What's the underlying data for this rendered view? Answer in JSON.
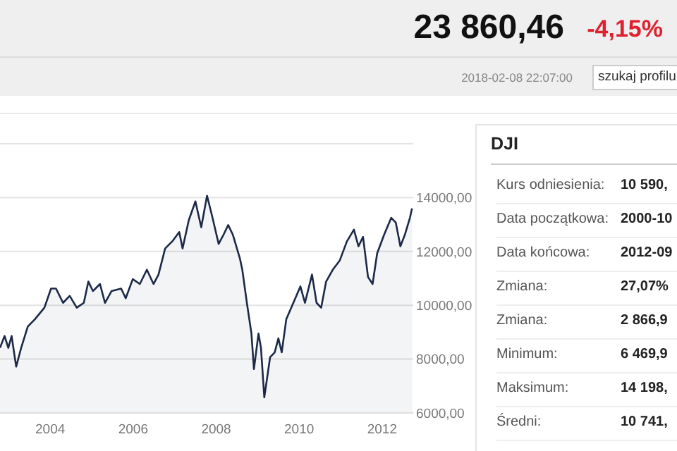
{
  "chart_data": [
    {
      "type": "other",
      "annotations": [
        "23 860,46",
        "-4,15%",
        "2018-02-08 22:07:00",
        "szukaj profilu"
      ]
    },
    {
      "type": "area",
      "xlim": [
        2002.79,
        2012.75
      ],
      "ylim": [
        6000,
        16000
      ],
      "xticks": [
        2004,
        2006,
        2008,
        2010,
        2012
      ],
      "yticks": [
        {
          "value": 6000,
          "label": "6000,00"
        },
        {
          "value": 8000,
          "label": "8000,00"
        },
        {
          "value": 10000,
          "label": "10000,00"
        },
        {
          "value": 12000,
          "label": "12000,00"
        },
        {
          "value": 14000,
          "label": "14000,00"
        }
      ],
      "grid": "y",
      "series": [
        {
          "color": "#1c2a48",
          "x": [
            2002.79,
            2002.9,
            2002.99,
            2003.07,
            2003.18,
            2003.3,
            2003.46,
            2003.63,
            2003.86,
            2004.02,
            2004.14,
            2004.31,
            2004.47,
            2004.64,
            2004.81,
            2004.92,
            2005.03,
            2005.2,
            2005.32,
            2005.48,
            2005.71,
            2005.82,
            2005.99,
            2006.16,
            2006.33,
            2006.49,
            2006.61,
            2006.77,
            2006.94,
            2007.11,
            2007.19,
            2007.34,
            2007.5,
            2007.64,
            2007.78,
            2007.9,
            2008.06,
            2008.18,
            2008.29,
            2008.4,
            2008.57,
            2008.63,
            2008.74,
            2008.85,
            2008.91,
            2009.02,
            2009.08,
            2009.16,
            2009.3,
            2009.41,
            2009.5,
            2009.58,
            2009.69,
            2009.86,
            2010.03,
            2010.14,
            2010.31,
            2010.42,
            2010.53,
            2010.65,
            2010.81,
            2010.98,
            2011.15,
            2011.32,
            2011.43,
            2011.54,
            2011.66,
            2011.77,
            2011.88,
            2012.05,
            2012.22,
            2012.33,
            2012.44,
            2012.55,
            2012.67,
            2012.72
          ],
          "values": [
            8420,
            8860,
            8420,
            8860,
            7720,
            8420,
            9210,
            9480,
            9910,
            10620,
            10620,
            10090,
            10350,
            9910,
            10090,
            10880,
            10530,
            10790,
            10090,
            10530,
            10620,
            10260,
            10970,
            10790,
            11320,
            10790,
            11140,
            12110,
            12370,
            12720,
            12110,
            13160,
            13860,
            12900,
            14070,
            13330,
            12280,
            12630,
            12980,
            12630,
            11750,
            11320,
            10090,
            8950,
            7630,
            8950,
            8420,
            6580,
            8070,
            8250,
            8770,
            8250,
            9480,
            10090,
            10700,
            10090,
            11140,
            10090,
            9910,
            10880,
            11320,
            11670,
            12370,
            12810,
            12190,
            12540,
            11050,
            10790,
            11930,
            12630,
            13250,
            13070,
            12190,
            12630,
            13250,
            13600
          ]
        }
      ]
    },
    {
      "type": "other",
      "title": "DJI",
      "annotations": [
        "Kurs odniesienia:",
        "10 590,",
        "Data początkowa:",
        "2000-10",
        "Data końcowa:",
        "2012-09",
        "Zmiana:",
        "27,07%",
        "Zmiana:",
        "2 866,9",
        "Minimum:",
        "6 469,9",
        "Maksimum:",
        "14 198,",
        "Średni:",
        "10 741,"
      ]
    }
  ]
}
